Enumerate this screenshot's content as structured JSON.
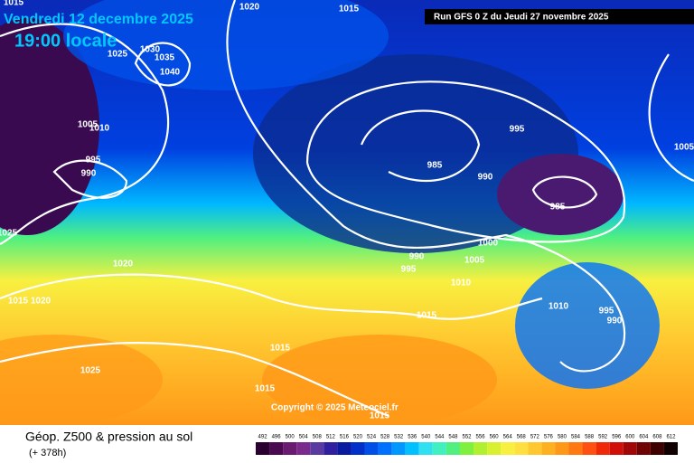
{
  "header": {
    "date": "Vendredi 12 decembre 2025",
    "time": "19:00 locale",
    "run": "Run GFS 0 Z du Jeudi 27 novembre 2025"
  },
  "copyright": "Copyright © 2025 Meteociel.fr",
  "footer": {
    "title": "Géop. Z500 & pression au sol",
    "lead": "(+ 378h)"
  },
  "isobar_labels": [
    "1015",
    "1020",
    "1015",
    "1030",
    "1025",
    "1035",
    "1040",
    "1005",
    "1010",
    "995",
    "990",
    "995",
    "985",
    "990",
    "985",
    "1005",
    "1025",
    "1000",
    "990",
    "995",
    "1005",
    "1010",
    "1015",
    "1010",
    "995",
    "990",
    "1020",
    "1015",
    "1020",
    "1015",
    "1025",
    "1015",
    "1015"
  ],
  "scale": {
    "labels": [
      "492",
      "496",
      "500",
      "504",
      "508",
      "512",
      "516",
      "520",
      "524",
      "528",
      "532",
      "536",
      "540",
      "544",
      "548",
      "552",
      "556",
      "560",
      "564",
      "568",
      "572",
      "576",
      "580",
      "584",
      "588",
      "592",
      "596",
      "600",
      "604",
      "608",
      "612"
    ],
    "colors": [
      "#2a0030",
      "#4a0a50",
      "#6a1a70",
      "#7a2a8a",
      "#5a3aa0",
      "#3020a0",
      "#0a1aa0",
      "#0030c8",
      "#0050e8",
      "#0070ff",
      "#0098ff",
      "#00c0ff",
      "#30e0f0",
      "#40f0c0",
      "#50f080",
      "#80f040",
      "#b0f030",
      "#d8f030",
      "#f8f040",
      "#ffe040",
      "#ffc830",
      "#ffb020",
      "#ff9818",
      "#ff7810",
      "#ff5010",
      "#f02808",
      "#d01008",
      "#a00808",
      "#700404",
      "#400000",
      "#100000"
    ]
  }
}
